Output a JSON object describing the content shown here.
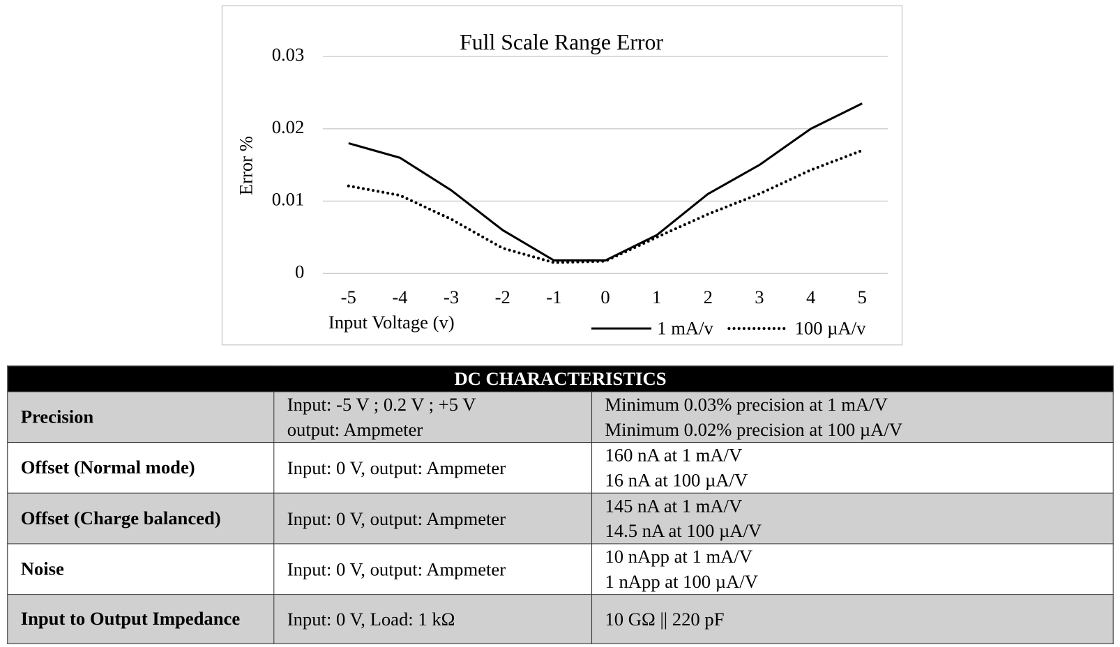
{
  "chart_data": {
    "type": "line",
    "title": "Full Scale Range Error",
    "x_label": "Input Voltage (v)",
    "y_label": "Error %",
    "x": [
      -5,
      -4,
      -3,
      -2,
      -1,
      0,
      1,
      2,
      3,
      4,
      5
    ],
    "series": [
      {
        "name": "1 mA/v",
        "color": "#000000",
        "style": "solid",
        "values": [
          0.018,
          0.016,
          0.0115,
          0.006,
          0.0018,
          0.0018,
          0.0053,
          0.011,
          0.015,
          0.02,
          0.0235
        ]
      },
      {
        "name": "100 µA/v",
        "color": "#000000",
        "style": "dotted",
        "values": [
          0.0121,
          0.0108,
          0.0075,
          0.0035,
          0.0015,
          0.0017,
          0.005,
          0.0082,
          0.011,
          0.0143,
          0.017
        ]
      }
    ],
    "xlim": [
      -5.5,
      5.5
    ],
    "xticks": [
      -5,
      -4,
      -3,
      -2,
      -1,
      0,
      1,
      2,
      3,
      4,
      5
    ],
    "ylim": [
      0,
      0.03
    ],
    "yticks": [
      0,
      0.01,
      0.02,
      0.03
    ],
    "grid": true,
    "legend": "bottom-right"
  },
  "table": {
    "title": "DC CHARACTERISTICS",
    "rows": [
      [
        "Precision",
        [
          "Input: -5 V ; 0.2 V ; +5 V",
          "output: Ampmeter"
        ],
        [
          "Minimum 0.03% precision at 1 mA/V",
          "Minimum 0.02% precision at 100 µA/V"
        ]
      ],
      [
        "Offset (Normal mode)",
        "Input: 0 V, output: Ampmeter",
        [
          "160 nA at 1 mA/V",
          "16 nA at 100 µA/V"
        ]
      ],
      [
        "Offset (Charge balanced)",
        "Input: 0 V, output: Ampmeter",
        [
          "145 nA at 1 mA/V",
          "14.5 nA at 100 µA/V"
        ]
      ],
      [
        "Noise",
        "Input: 0 V, output: Ampmeter",
        [
          "10 nApp at 1 mA/V",
          "1 nApp at 100 µA/V"
        ]
      ],
      [
        "Input to Output Impedance",
        "Input: 0 V, Load: 1 kΩ",
        "10 GΩ || 220 pF"
      ]
    ]
  }
}
